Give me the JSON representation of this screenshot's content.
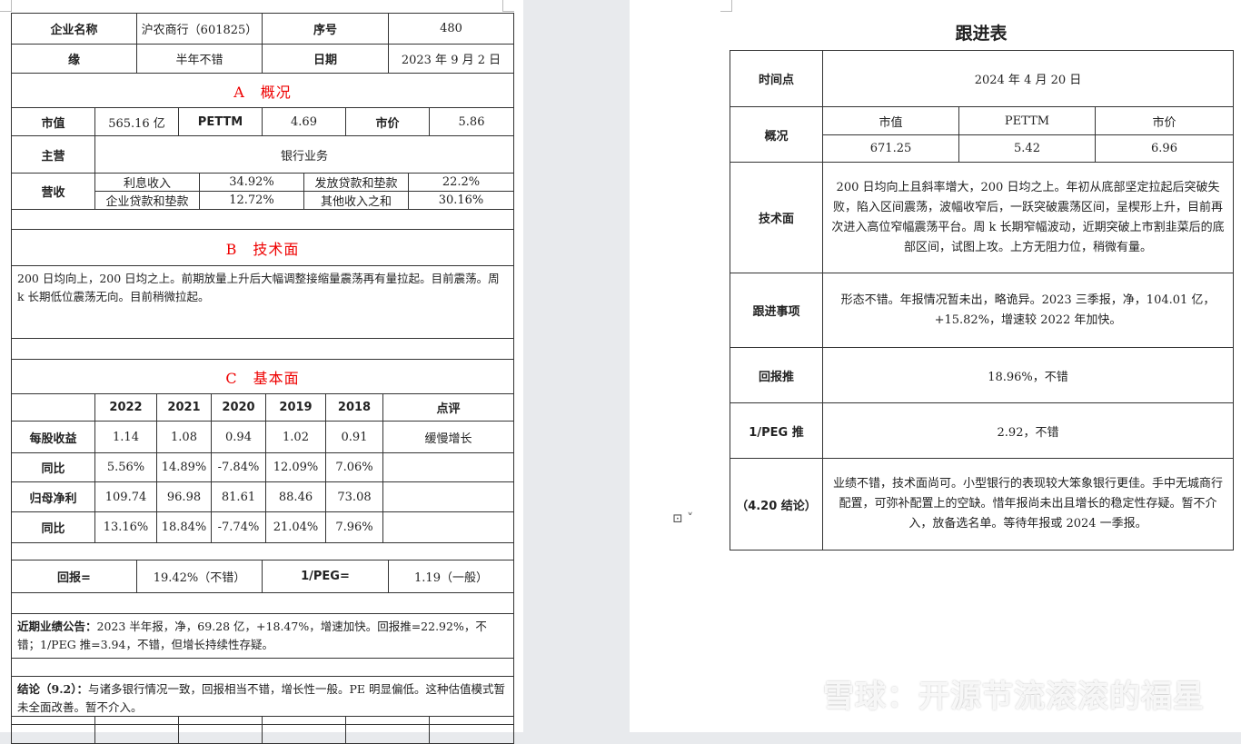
{
  "left": {
    "header": {
      "company_label": "企业名称",
      "company": "沪农商行（601825）",
      "seq_label": "序号",
      "seq": "480",
      "reason_label": "缘",
      "reason": "半年不错",
      "date_label": "日期",
      "date": "2023 年 9 月 2 日"
    },
    "section_a": "A　概况",
    "market": {
      "mv_label": "市值",
      "mv": "565.16 亿",
      "pe_label": "PETTM",
      "pe": "4.69",
      "price_label": "市价",
      "price": "5.86"
    },
    "main_label": "主营",
    "main": "银行业务",
    "revenue": {
      "label": "营收",
      "items": [
        [
          "利息收入",
          "34.92%",
          "发放贷款和垫款",
          "22.2%"
        ],
        [
          "企业贷款和垫款",
          "12.72%",
          "其他收入之和",
          "30.16%"
        ]
      ]
    },
    "section_b": "B　技术面",
    "tech_text": "200 日均向上，200 日均之上。前期放量上升后大幅调整接缩量震荡再有量拉起。目前震荡。周 k 长期低位震荡无向。目前稍微拉起。",
    "section_c": "C　基本面",
    "fundamentals": {
      "headers": [
        "",
        "2022",
        "2021",
        "2020",
        "2019",
        "2018",
        "点评"
      ],
      "rows": [
        [
          "每股收益",
          "1.14",
          "1.08",
          "0.94",
          "1.02",
          "0.91",
          "缓慢增长"
        ],
        [
          "同比",
          "5.56%",
          "14.89%",
          "-7.84%",
          "12.09%",
          "7.06%",
          ""
        ],
        [
          "归母净利",
          "109.74",
          "96.98",
          "81.61",
          "88.46",
          "73.08",
          ""
        ],
        [
          "同比",
          "13.16%",
          "18.84%",
          "-7.74%",
          "21.04%",
          "7.96%",
          ""
        ]
      ]
    },
    "returns": {
      "ret_label": "回报=",
      "ret": "19.42%（不错）",
      "peg_label": "1/PEG=",
      "peg": "1.19（一般）"
    },
    "recent_label": "近期业绩公告：",
    "recent_text": "2023 半年报，净，69.28 亿，+18.47%，增速加快。回报推=22.92%，不错；1/PEG 推=3.94，不错，但增长持续性存疑。",
    "conclusion_label": "结论（9.2）：",
    "conclusion_text": "与诸多银行情况一致，回报相当不错，增长性一般。PE 明显偏低。这种估值模式暂未全面改善。暂不介入。"
  },
  "right": {
    "title": "跟进表",
    "time_label": "时间点",
    "time": "2024 年 4 月 20 日",
    "overview_label": "概况",
    "overview_headers": [
      "市值",
      "PETTM",
      "市价"
    ],
    "overview_values": [
      "671.25",
      "5.42",
      "6.96"
    ],
    "tech_label": "技术面",
    "tech_text": "200 日均向上且斜率增大，200 日均之上。年初从底部坚定拉起后突破失败，陷入区间震荡，波幅收窄后，一跃突破震荡区间，呈楔形上升，目前再次进入高位窄幅震荡平台。周 k 长期窄幅波动，近期突破上市割韭菜后的底部区间，试图上攻。上方无阻力位，稍微有量。",
    "follow_label": "跟进事项",
    "follow_text": "形态不错。年报情况暂未出，略诡异。2023 三季报，净，104.01 亿，+15.82%，增速较 2022 年加快。",
    "ret_label": "回报推",
    "ret": "18.96%，不错",
    "peg_label": "1/PEG 推",
    "peg": "2.92，不错",
    "conclusion_label": "（4.20 结论）",
    "conclusion_text": "业绩不错，技术面尚可。小型银行的表现较大笨象银行更佳。手中无城商行配置，可弥补配置上的空缺。惜年报尚未出且增长的稳定性存疑。暂不介入，放备选名单。等待年报或 2024 一季报。"
  },
  "watermark": "雪球：开源节流滚滚的福星",
  "colors": {
    "section_title": "#ee0000",
    "background": "#e8eaed"
  }
}
